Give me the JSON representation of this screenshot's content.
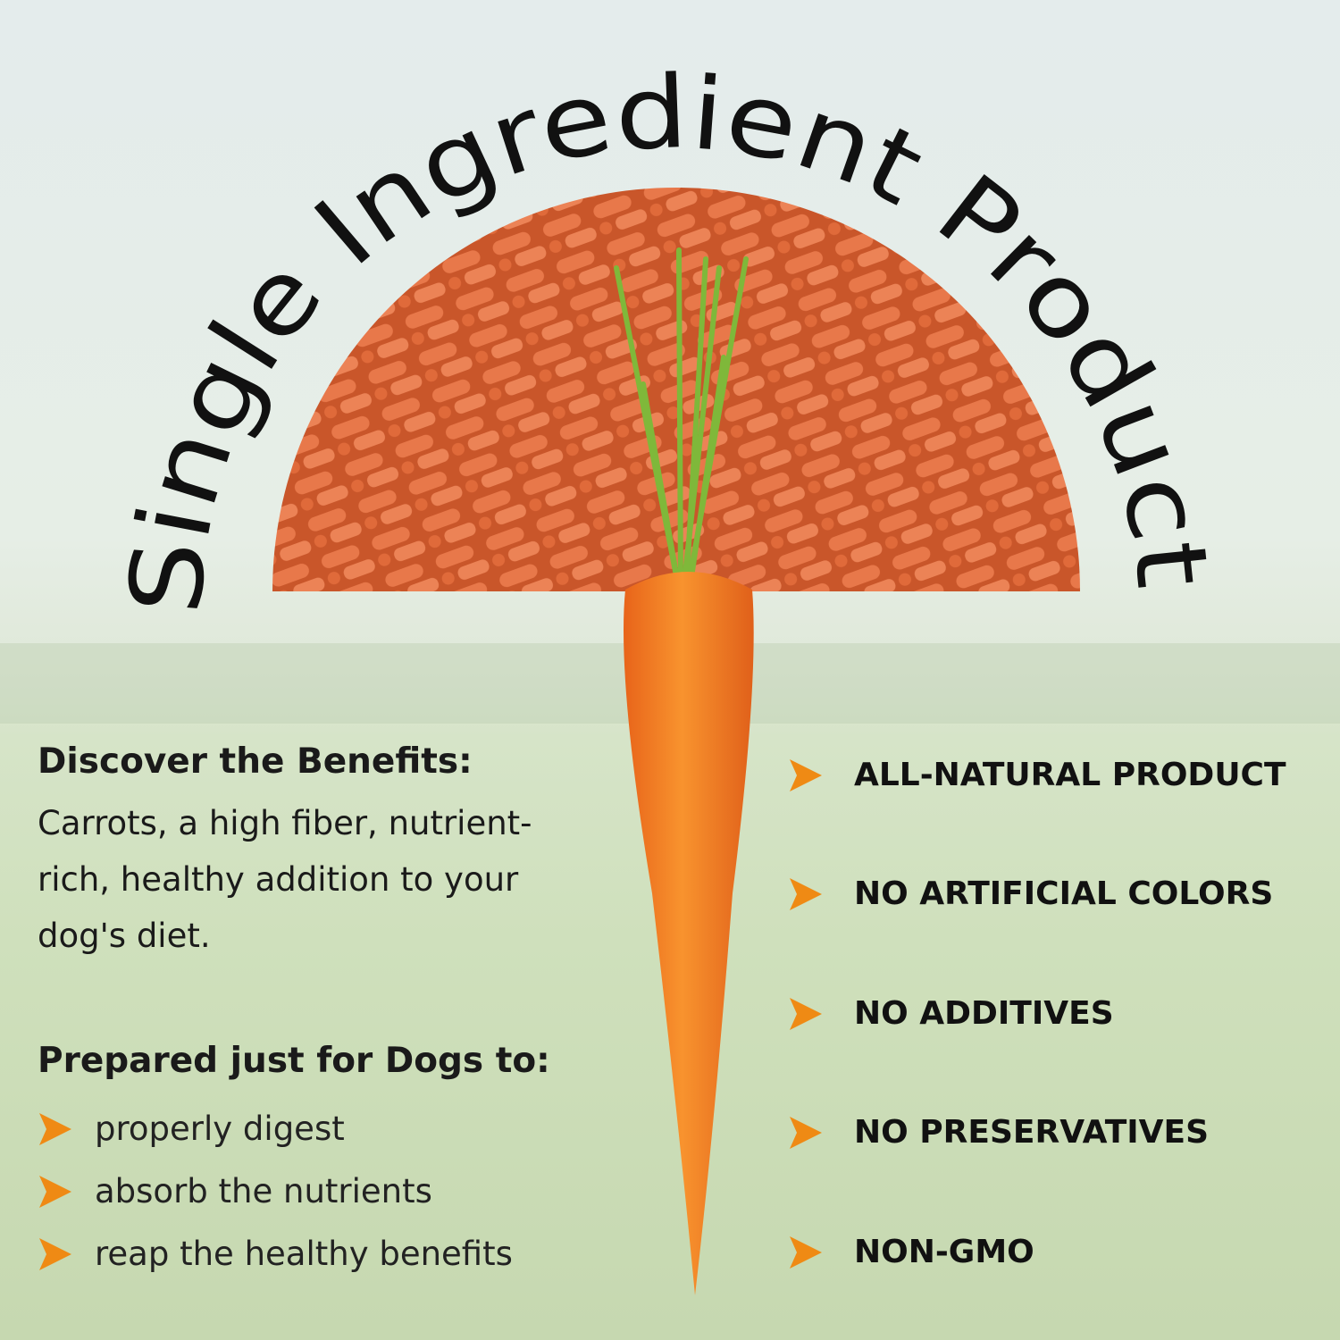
{
  "title": "Single Ingredient Product",
  "benefits": {
    "heading": "Discover the Benefits:",
    "body_lines": [
      "Carrots, a high fiber, nutrient-",
      "rich, healthy addition to your",
      "dog's diet."
    ]
  },
  "prepared": {
    "heading": "Prepared just for Dogs to:",
    "items": [
      "properly digest",
      "absorb the nutrients",
      "reap the healthy benefits"
    ]
  },
  "features": [
    "ALL-NATURAL PRODUCT",
    "NO ARTIFICIAL COLORS",
    "NO ADDITIVES",
    "NO PRESERVATIVES",
    "NON-GMO"
  ],
  "colors": {
    "accent": "#ef8a14",
    "pellet": "#e0703a",
    "carrot": "#f07a22",
    "text": "#1a1a1a"
  },
  "icons": {
    "bullet": "arrow-right-icon"
  }
}
